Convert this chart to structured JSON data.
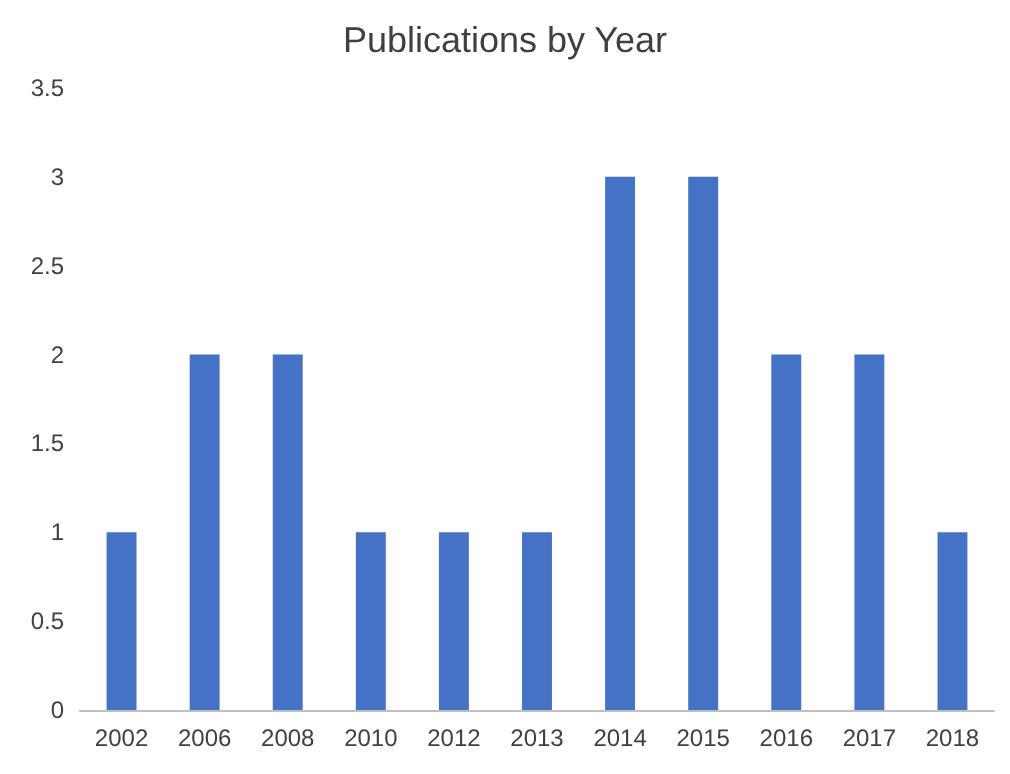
{
  "chart_data": {
    "type": "bar",
    "title": "Publications by Year",
    "categories": [
      "2002",
      "2006",
      "2008",
      "2010",
      "2012",
      "2013",
      "2014",
      "2015",
      "2016",
      "2017",
      "2018"
    ],
    "values": [
      1,
      2,
      2,
      1,
      1,
      1,
      3,
      3,
      2,
      2,
      1
    ],
    "color": "#4472c4",
    "ylim": [
      0,
      3.5
    ],
    "yticks": [
      0,
      0.5,
      1,
      1.5,
      2,
      2.5,
      3,
      3.5
    ],
    "grid": false
  }
}
